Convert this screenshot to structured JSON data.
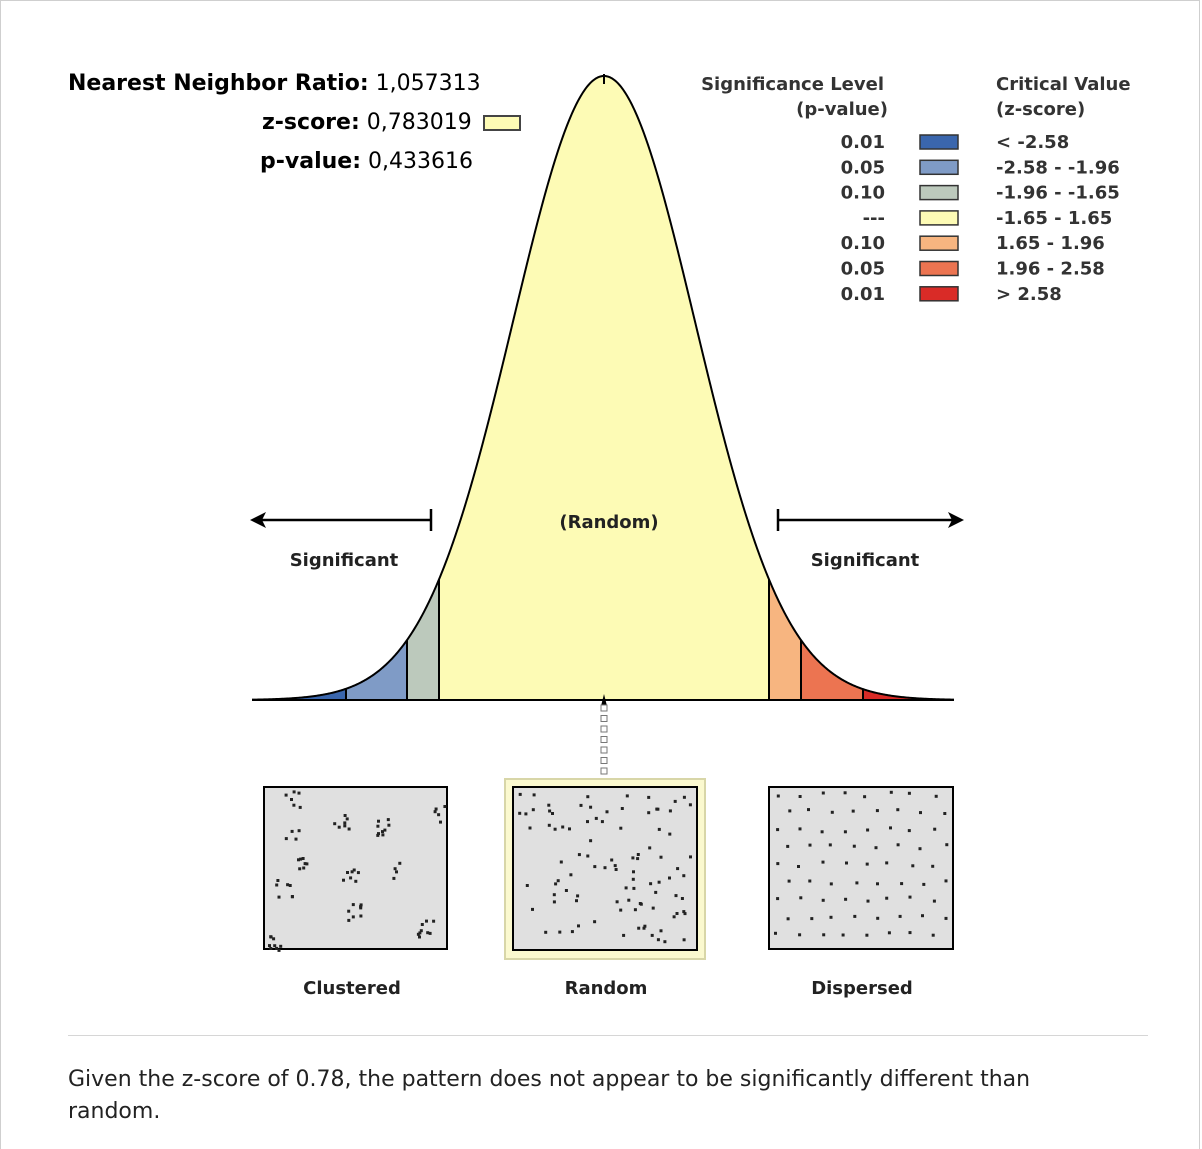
{
  "stats": {
    "nnr_label": "Nearest Neighbor Ratio:",
    "nnr_value": "1,057313",
    "z_label": "z-score:",
    "z_value": "0,783019",
    "p_label": "p-value:",
    "p_value": "0,433616"
  },
  "legend": {
    "sig_header_1": "Significance Level",
    "sig_header_2": "(p-value)",
    "crit_header_1": "Critical Value",
    "crit_header_2": "(z-score)",
    "rows": [
      {
        "p": "0.01",
        "z": "< -2.58",
        "color": "#3a66ad"
      },
      {
        "p": "0.05",
        "z": "-2.58 - -1.96",
        "color": "#7f9bc6"
      },
      {
        "p": "0.10",
        "z": "-1.96 - -1.65",
        "color": "#bcc9bc"
      },
      {
        "p": "---",
        "z": "-1.65 - 1.65",
        "color": "#fdfbb5"
      },
      {
        "p": "0.10",
        "z": "1.65 - 1.96",
        "color": "#f7b580"
      },
      {
        "p": "0.05",
        "z": "1.96 - 2.58",
        "color": "#ec7451"
      },
      {
        "p": "0.01",
        "z": "> 2.58",
        "color": "#d92b27"
      }
    ]
  },
  "curve": {
    "random_label": "(Random)",
    "significant_left": "Significant",
    "significant_right": "Significant",
    "z_score": 0.783019
  },
  "patterns": {
    "clustered": "Clustered",
    "random": "Random",
    "dispersed": "Dispersed"
  },
  "conclusion": "Given the z-score of 0.78, the pattern does not appear to be significantly different than random."
}
